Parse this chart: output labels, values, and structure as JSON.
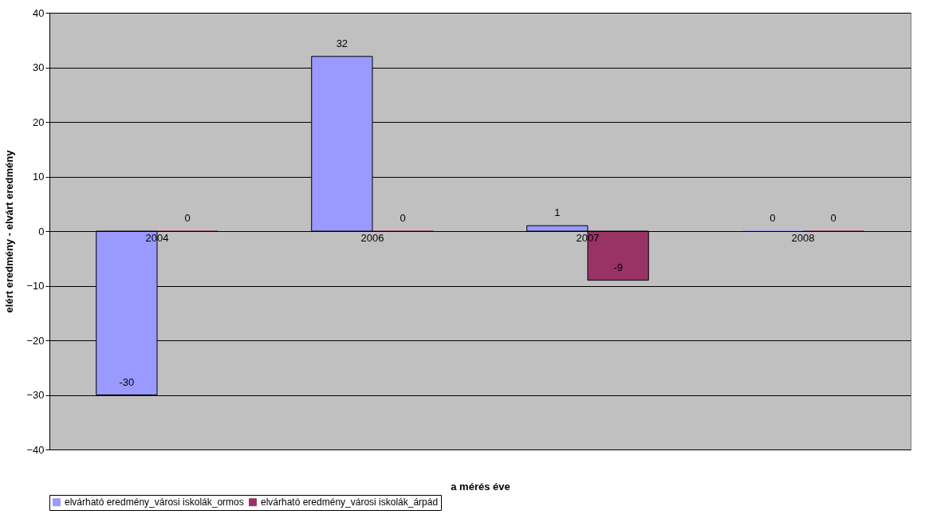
{
  "chart_data": {
    "type": "bar",
    "xlabel": "a mérés éve",
    "ylabel": "elért eredmény - elvárt eredmény",
    "categories": [
      "2004",
      "2006",
      "2007",
      "2008"
    ],
    "series": [
      {
        "name": "elvárható eredmény_városi iskolák_ormos",
        "color": "#9999ff",
        "values": [
          -30,
          32,
          1,
          0
        ]
      },
      {
        "name": "elvárható eredmény_városi iskolák_árpád",
        "color": "#993366",
        "values": [
          0,
          0,
          -9,
          0
        ]
      }
    ],
    "ylim": [
      -40,
      40
    ],
    "yticks": [
      -40,
      -30,
      -20,
      -10,
      0,
      10,
      20,
      30,
      40
    ],
    "grid": "y",
    "legend": "bottom",
    "data_labels": true
  }
}
